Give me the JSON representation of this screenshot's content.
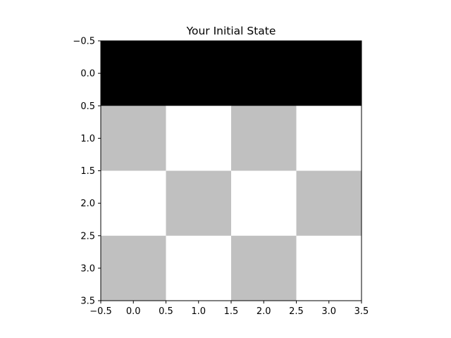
{
  "chart_data": {
    "type": "heatmap",
    "title": "Your Initial State",
    "xlabel": "",
    "ylabel": "",
    "xlim": [
      -0.5,
      3.5
    ],
    "ylim": [
      3.5,
      -0.5
    ],
    "y_axis_inverted": true,
    "grid": false,
    "legend": "none",
    "xticks": [
      -0.5,
      0.0,
      0.5,
      1.0,
      1.5,
      2.0,
      2.5,
      3.0,
      3.5
    ],
    "yticks": [
      -0.5,
      0.0,
      0.5,
      1.0,
      1.5,
      2.0,
      2.5,
      3.0,
      3.5
    ],
    "xtick_labels": [
      "−0.5",
      "0.0",
      "0.5",
      "1.0",
      "1.5",
      "2.0",
      "2.5",
      "3.0",
      "3.5"
    ],
    "ytick_labels": [
      "−0.5",
      "0.0",
      "0.5",
      "1.0",
      "1.5",
      "2.0",
      "2.5",
      "3.0",
      "3.5"
    ],
    "colormap": "gray",
    "cell_colors": [
      [
        "#000000",
        "#000000",
        "#000000",
        "#000000"
      ],
      [
        "#c0c0c0",
        "#ffffff",
        "#c0c0c0",
        "#ffffff"
      ],
      [
        "#ffffff",
        "#c0c0c0",
        "#ffffff",
        "#c0c0c0"
      ],
      [
        "#c0c0c0",
        "#ffffff",
        "#c0c0c0",
        "#ffffff"
      ]
    ]
  }
}
